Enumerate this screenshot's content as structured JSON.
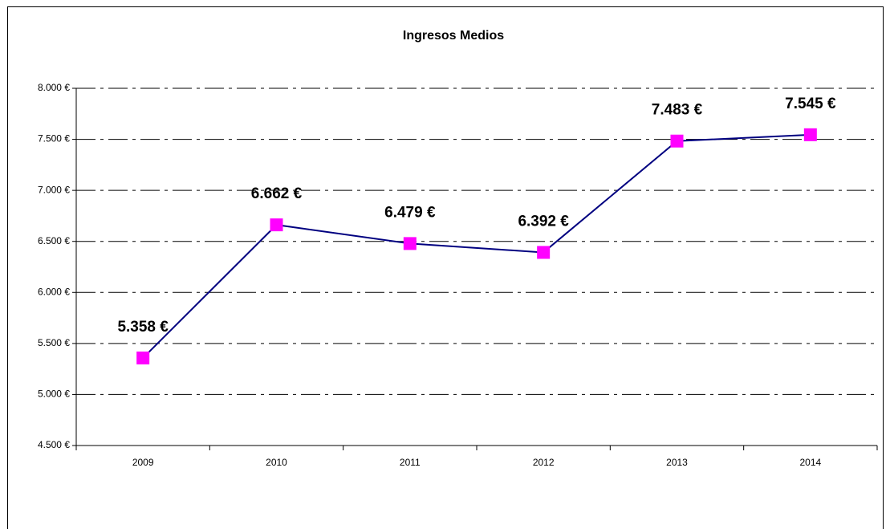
{
  "chart_data": {
    "type": "line",
    "title": "Ingresos Medios",
    "categories": [
      "2009",
      "2010",
      "2011",
      "2012",
      "2013",
      "2014"
    ],
    "values": [
      5358,
      6662,
      6479,
      6392,
      7483,
      7545
    ],
    "value_labels": [
      "5.358 €",
      "6.662 €",
      "6.479 €",
      "6.392 €",
      "7.483 €",
      "7.545 €"
    ],
    "color": "#000080",
    "marker_color": "#ff00ff",
    "ylim": [
      4500,
      8000
    ],
    "yticks": [
      {
        "value": 4500,
        "label": "4.500 €"
      },
      {
        "value": 5000,
        "label": "5.000 €"
      },
      {
        "value": 5500,
        "label": "5.500 €"
      },
      {
        "value": 6000,
        "label": "6.000 €"
      },
      {
        "value": 6500,
        "label": "6.500 €"
      },
      {
        "value": 7000,
        "label": "7.000 €"
      },
      {
        "value": 7500,
        "label": "7.500 €"
      },
      {
        "value": 8000,
        "label": "8.000 €"
      }
    ],
    "grid": true
  }
}
